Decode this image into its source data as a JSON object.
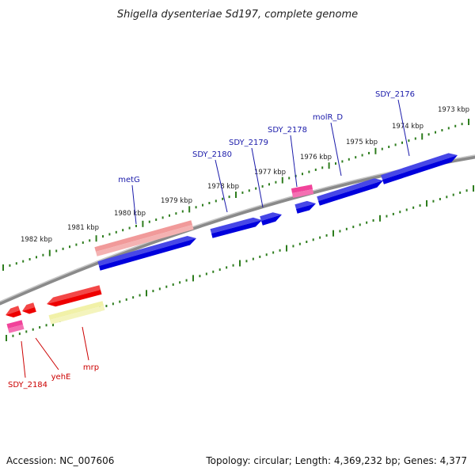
{
  "title": "Shigella dysenteriae Sd197, complete genome",
  "footer": {
    "accession": "Accession: NC_007606",
    "summary": "Topology: circular; Length: 4,369,232 bp; Genes: 4,377"
  },
  "colors": {
    "backbone": "#8a8a8a",
    "tick": "#2e7d1e",
    "forward_gene": "#0000dd",
    "reverse_gene": "#ee0000",
    "pseudo_gene": "#ee2288",
    "rna_forward": "#ee8888",
    "rna_reverse": "#eeee99",
    "forward_label": "#1a1aaa",
    "reverse_label": "#cc0000"
  },
  "ruler": {
    "forward_labels": [
      "1982 kbp",
      "1981 kbp",
      "1980 kbp",
      "1979 kbp",
      "1978 kbp",
      "1977 kbp",
      "1976 kbp",
      "1975 kbp",
      "1974 kbp",
      "1973 kbp"
    ]
  },
  "genes": {
    "forward": [
      {
        "label": "metG",
        "type": "rna_forward"
      },
      {
        "label": "",
        "type": "forward_gene"
      },
      {
        "label": "SDY_2180",
        "type": "forward_gene"
      },
      {
        "label": "SDY_2179",
        "type": "forward_gene"
      },
      {
        "label": "SDY_2178",
        "type": "pseudo_gene"
      },
      {
        "label": "",
        "type": "forward_gene"
      },
      {
        "label": "molR_D",
        "type": "forward_gene"
      },
      {
        "label": "SDY_2176",
        "type": "forward_gene"
      }
    ],
    "reverse": [
      {
        "label": "SDY_2184",
        "type": "reverse_gene"
      },
      {
        "label": "",
        "type": "pseudo_gene"
      },
      {
        "label": "yehE",
        "type": "reverse_gene"
      },
      {
        "label": "mrp",
        "type": "reverse_gene"
      },
      {
        "label": "",
        "type": "rna_reverse"
      }
    ]
  }
}
